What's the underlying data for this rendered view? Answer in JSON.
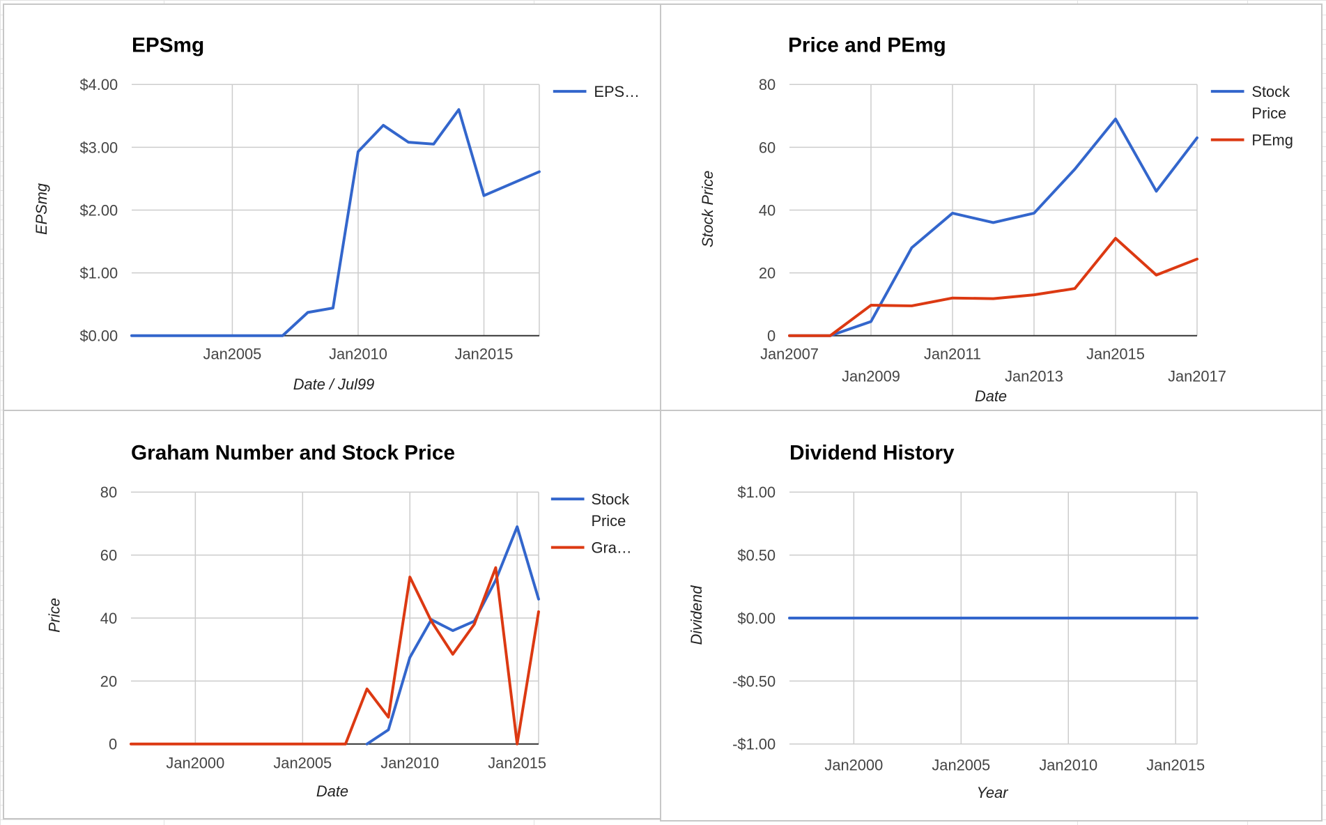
{
  "colors": {
    "blue": "#3366cc",
    "red": "#dc3912",
    "grid": "#cccccc",
    "baseline": "#333333"
  },
  "charts": {
    "eps": {
      "title": "EPSmg",
      "ylabel": "EPSmg",
      "xlabel": "Date / Jul99",
      "legend": [
        "EPS…"
      ]
    },
    "price": {
      "title": "Price and PEmg",
      "ylabel": "Stock Price",
      "xlabel": "Date",
      "legend": [
        "Stock Price",
        "PEmg"
      ]
    },
    "graham": {
      "title": "Graham Number and Stock Price",
      "ylabel": "Price",
      "xlabel": "Date",
      "legend": [
        "Stock Price",
        "Gra…"
      ]
    },
    "dividend": {
      "title": "Dividend History",
      "ylabel": "Dividend",
      "xlabel": "Year",
      "legend": []
    }
  },
  "chart_data": [
    {
      "id": "eps",
      "type": "line",
      "title": "EPSmg",
      "xlabel": "Date / Jul99",
      "ylabel": "EPSmg",
      "xlim": [
        2001.0,
        2017.2
      ],
      "ylim": [
        0,
        4
      ],
      "x_ticks": [
        {
          "value": 2005,
          "label": "Jan2005"
        },
        {
          "value": 2010,
          "label": "Jan2010"
        },
        {
          "value": 2015,
          "label": "Jan2015"
        }
      ],
      "y_ticks": [
        {
          "value": 0,
          "label": "$0.00"
        },
        {
          "value": 1,
          "label": "$1.00"
        },
        {
          "value": 2,
          "label": "$2.00"
        },
        {
          "value": 3,
          "label": "$3.00"
        },
        {
          "value": 4,
          "label": "$4.00"
        }
      ],
      "legend_position": "right",
      "series": [
        {
          "name": "EPS…",
          "color": "#3366cc",
          "x": [
            2001.0,
            2007.0,
            2008.0,
            2009.0,
            2010.0,
            2011.0,
            2012.0,
            2013.0,
            2014.0,
            2015.0,
            2017.2
          ],
          "y": [
            0,
            0,
            0.37,
            0.44,
            2.93,
            3.35,
            3.08,
            3.05,
            3.6,
            2.23,
            2.61
          ]
        }
      ]
    },
    {
      "id": "price",
      "type": "line",
      "title": "Price and PEmg",
      "xlabel": "Date",
      "ylabel": "Stock Price",
      "xlim": [
        2007.0,
        2017.0
      ],
      "ylim": [
        0,
        80
      ],
      "x_ticks": [
        {
          "value": 2007,
          "label": "Jan2007",
          "row": 0
        },
        {
          "value": 2009,
          "label": "Jan2009",
          "row": 1
        },
        {
          "value": 2011,
          "label": "Jan2011",
          "row": 0
        },
        {
          "value": 2013,
          "label": "Jan2013",
          "row": 1
        },
        {
          "value": 2015,
          "label": "Jan2015",
          "row": 0
        },
        {
          "value": 2017,
          "label": "Jan2017",
          "row": 1
        }
      ],
      "y_ticks": [
        {
          "value": 0,
          "label": "0"
        },
        {
          "value": 20,
          "label": "20"
        },
        {
          "value": 40,
          "label": "40"
        },
        {
          "value": 60,
          "label": "60"
        },
        {
          "value": 80,
          "label": "80"
        }
      ],
      "legend_position": "right",
      "series": [
        {
          "name": "Stock Price",
          "color": "#3366cc",
          "x": [
            2007.0,
            2008.0,
            2009.0,
            2010.0,
            2011.0,
            2012.0,
            2013.0,
            2014.0,
            2015.0,
            2016.0,
            2017.0
          ],
          "y": [
            0,
            0,
            4.5,
            28,
            39,
            36,
            39,
            53,
            69,
            46,
            63
          ]
        },
        {
          "name": "PEmg",
          "color": "#dc3912",
          "x": [
            2007.0,
            2008.0,
            2009.0,
            2010.0,
            2011.0,
            2012.0,
            2013.0,
            2014.0,
            2015.0,
            2016.0,
            2017.0
          ],
          "y": [
            0,
            0,
            9.7,
            9.5,
            12,
            11.8,
            13,
            15,
            31,
            19.3,
            24.4
          ]
        }
      ]
    },
    {
      "id": "graham",
      "type": "line",
      "title": "Graham Number and Stock Price",
      "xlabel": "Date",
      "ylabel": "Price",
      "xlim": [
        1997.0,
        2016.0
      ],
      "ylim": [
        0,
        80
      ],
      "x_ticks": [
        {
          "value": 2000,
          "label": "Jan2000"
        },
        {
          "value": 2005,
          "label": "Jan2005"
        },
        {
          "value": 2010,
          "label": "Jan2010"
        },
        {
          "value": 2015,
          "label": "Jan2015"
        }
      ],
      "y_ticks": [
        {
          "value": 0,
          "label": "0"
        },
        {
          "value": 20,
          "label": "20"
        },
        {
          "value": 40,
          "label": "40"
        },
        {
          "value": 60,
          "label": "60"
        },
        {
          "value": 80,
          "label": "80"
        }
      ],
      "legend_position": "right",
      "series": [
        {
          "name": "Stock Price",
          "color": "#3366cc",
          "x": [
            2008.0,
            2009.0,
            2010.0,
            2011.0,
            2012.0,
            2013.0,
            2014.0,
            2015.0,
            2016.0
          ],
          "y": [
            0,
            4.5,
            27.5,
            39.5,
            36,
            39,
            52,
            69,
            46
          ]
        },
        {
          "name": "Gra…",
          "color": "#dc3912",
          "x": [
            1997.0,
            2007.0,
            2008.0,
            2009.0,
            2010.0,
            2011.0,
            2012.0,
            2013.0,
            2014.0,
            2015.0,
            2016.0
          ],
          "y": [
            0,
            0,
            17.5,
            8.5,
            53,
            39,
            28.5,
            38,
            56,
            0,
            42
          ]
        }
      ]
    },
    {
      "id": "dividend",
      "type": "line",
      "title": "Dividend History",
      "xlabel": "Year",
      "ylabel": "Dividend",
      "xlim": [
        1997.0,
        2016.0
      ],
      "ylim": [
        -1,
        1
      ],
      "x_ticks": [
        {
          "value": 2000,
          "label": "Jan2000"
        },
        {
          "value": 2005,
          "label": "Jan2005"
        },
        {
          "value": 2010,
          "label": "Jan2010"
        },
        {
          "value": 2015,
          "label": "Jan2015"
        }
      ],
      "y_ticks": [
        {
          "value": -1,
          "label": "-$1.00"
        },
        {
          "value": -0.5,
          "label": "-$0.50"
        },
        {
          "value": 0,
          "label": "$0.00"
        },
        {
          "value": 0.5,
          "label": "$0.50"
        },
        {
          "value": 1,
          "label": "$1.00"
        }
      ],
      "legend_position": "none",
      "series": [
        {
          "color": "#3366cc",
          "x": [
            1997.0,
            2016.0
          ],
          "y": [
            0,
            0
          ]
        }
      ]
    }
  ]
}
